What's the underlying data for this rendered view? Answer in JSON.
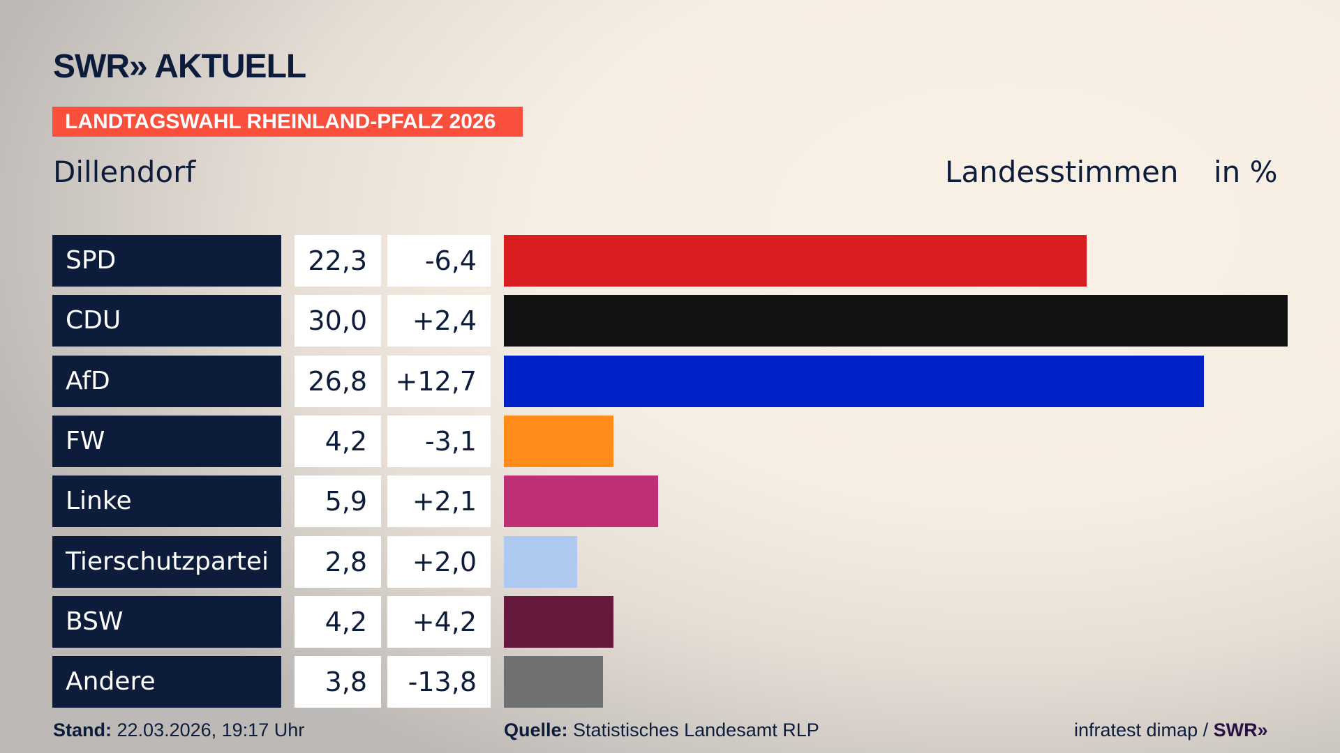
{
  "header": {
    "logo": "SWR» AKTUELL",
    "banner": "LANDTAGSWAHL RHEINLAND-PFALZ 2026",
    "place": "Dillendorf",
    "measure": "Landesstimmen",
    "unit": "in %"
  },
  "chart_data": {
    "type": "bar",
    "orientation": "horizontal",
    "xlim": [
      0,
      30
    ],
    "categories": [
      "SPD",
      "CDU",
      "AfD",
      "FW",
      "Linke",
      "Tierschutzpartei",
      "BSW",
      "Andere"
    ],
    "values": [
      22.3,
      30.0,
      26.8,
      4.2,
      5.9,
      2.8,
      4.2,
      3.8
    ],
    "value_labels": [
      "22,3",
      "30,0",
      "26,8",
      "4,2",
      "5,9",
      "2,8",
      "4,2",
      "3,8"
    ],
    "change_labels": [
      "-6,4",
      "+2,4",
      "+12,7",
      "-3,1",
      "+2,1",
      "+2,0",
      "+4,2",
      "-13,8"
    ],
    "colors": [
      "#d91e22",
      "#121212",
      "#0021c8",
      "#ff8c1a",
      "#bd3075",
      "#adc9ef",
      "#66193d",
      "#6f7071"
    ]
  },
  "footer": {
    "stand_label": "Stand:",
    "stand": "22.03.2026, 19:17 Uhr",
    "source_label": "Quelle:",
    "source": "Statistisches Landesamt RLP",
    "credit": "infratest dimap /",
    "credit_logo": "SWR»"
  }
}
